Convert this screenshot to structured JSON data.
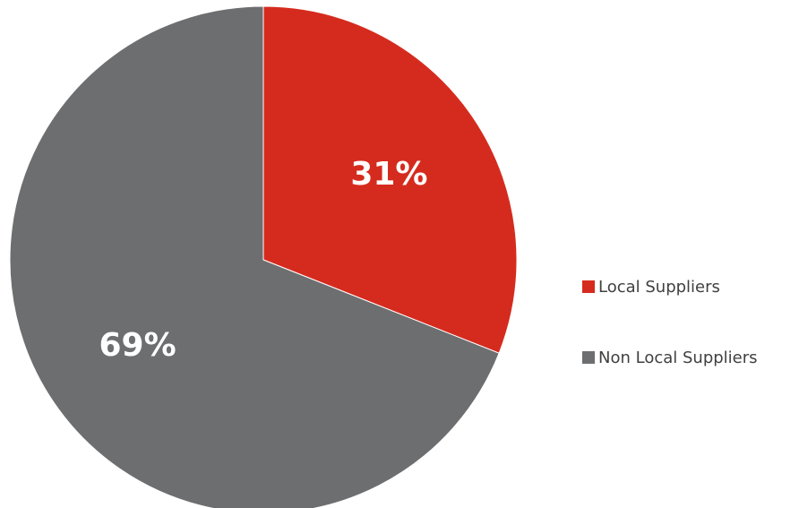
{
  "chart_data": {
    "type": "pie",
    "title": "",
    "slices": [
      {
        "label": "Local Suppliers",
        "value": 31,
        "display": "31%",
        "color": "#d52b1e"
      },
      {
        "label": "Non Local Suppliers",
        "value": 69,
        "display": "69%",
        "color": "#6d6e70"
      }
    ],
    "start_angle": "12 o'clock",
    "direction": "clockwise",
    "legend_position": "right"
  }
}
